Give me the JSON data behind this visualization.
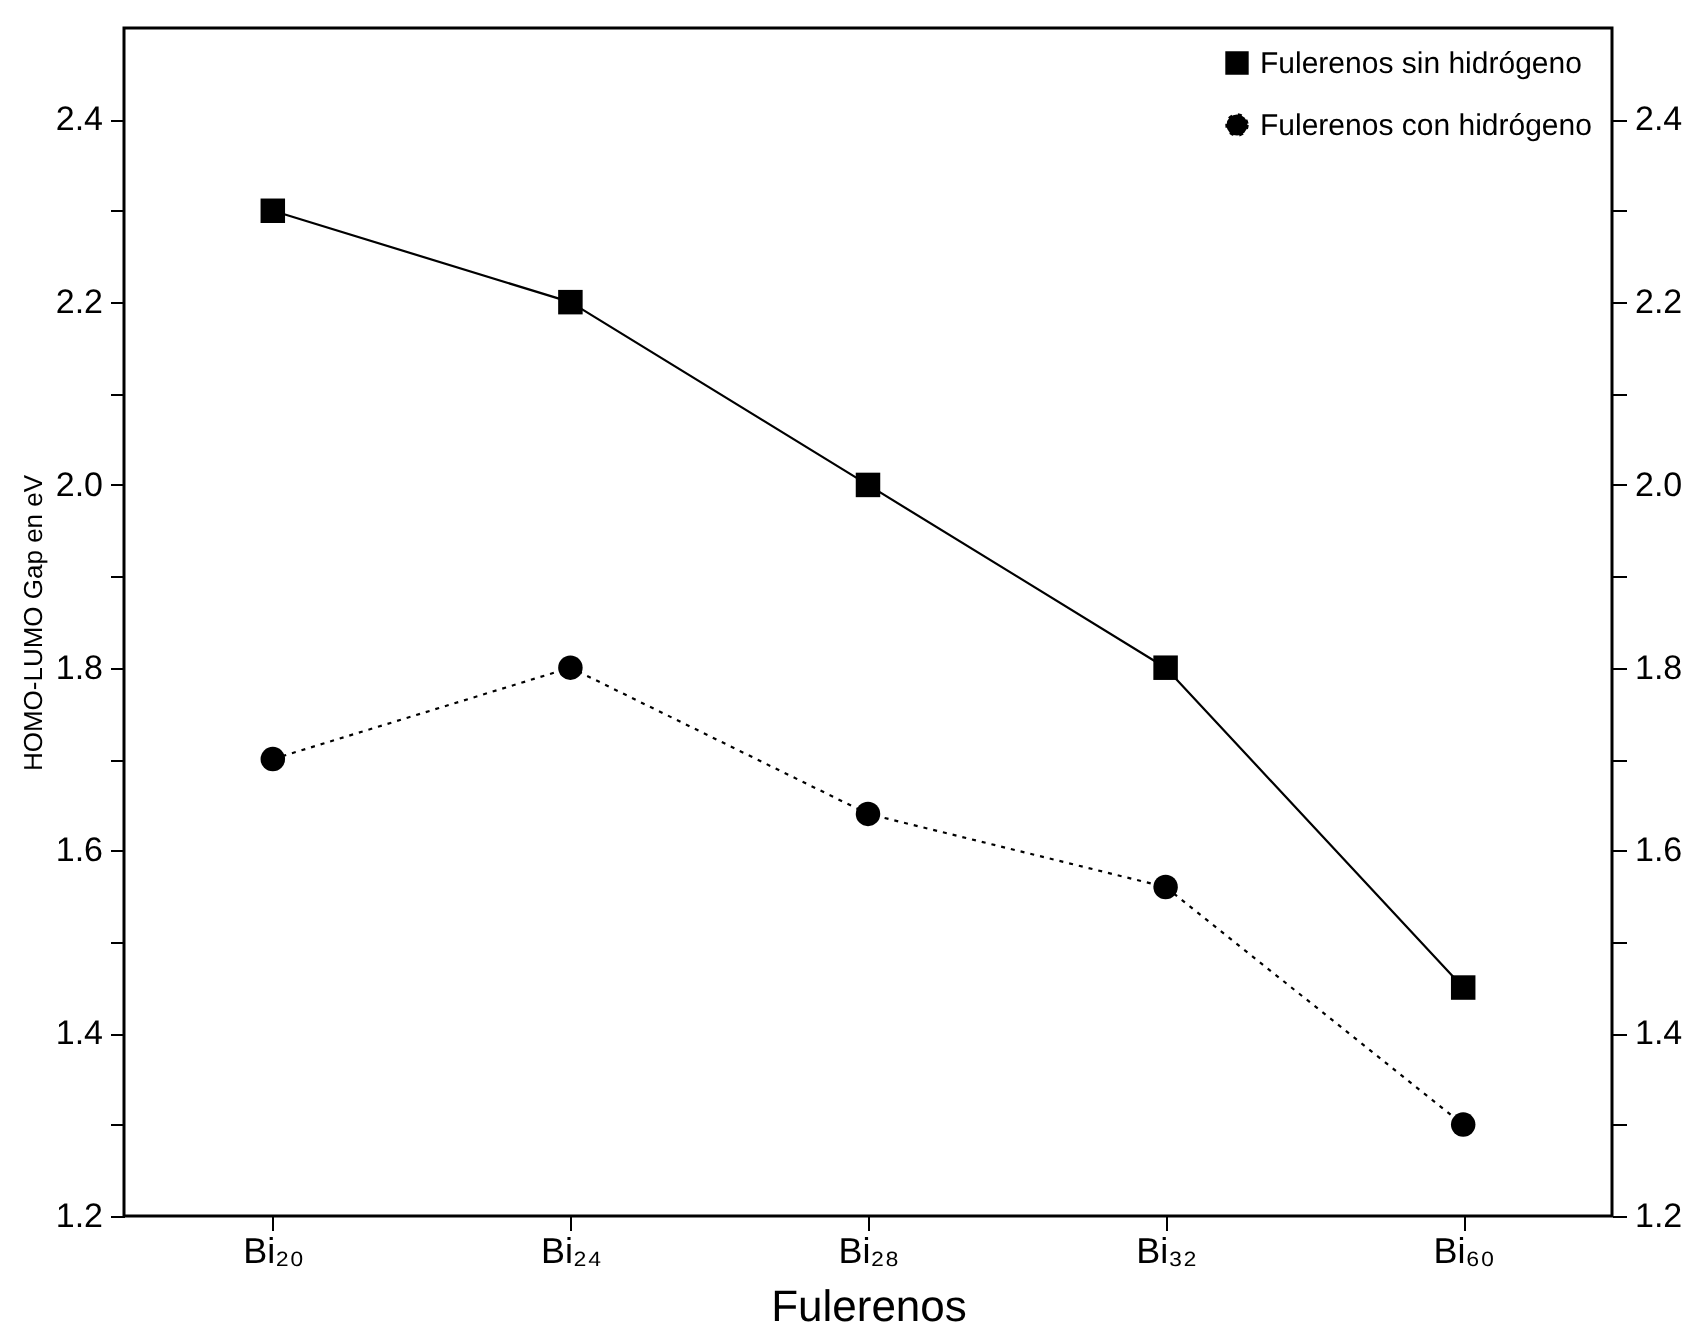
{
  "chart_data": {
    "type": "line",
    "xlabel": "Fulerenos",
    "ylabel": "HOMO-LUMO Gap en eV",
    "categories": [
      "Bi₂₀",
      "Bi₂₄",
      "Bi₂₈",
      "Bi₃₂",
      "Bi₆₀"
    ],
    "series": [
      {
        "name": "Fulerenos sin hidrógeno",
        "color": "#000000",
        "marker": "square",
        "line_style": "solid",
        "values": [
          2.3,
          2.2,
          2.0,
          1.8,
          1.45
        ]
      },
      {
        "name": "Fulerenos con hidrógeno",
        "color": "#000000",
        "marker": "circle",
        "line_style": "dotted",
        "values": [
          1.7,
          1.8,
          1.64,
          1.56,
          1.3
        ]
      }
    ],
    "ylim": [
      1.2,
      2.5
    ],
    "yticks": [
      1.2,
      {
        "value": 1.3,
        "label": null
      },
      1.4,
      {
        "value": 1.5,
        "label": null
      },
      1.6,
      {
        "value": 1.7,
        "label": null
      },
      1.8,
      {
        "value": 1.9,
        "label": null
      },
      {
        "value": 2,
        "label": "2.0"
      },
      {
        "value": 2.1,
        "label": null
      },
      2.2,
      {
        "value": 2.3,
        "label": null
      },
      2.4
    ],
    "y2lim": [
      1.2,
      2.5
    ],
    "y2ticks": [
      1.2,
      {
        "value": 1.3,
        "label": null
      },
      1.4,
      {
        "value": 1.5,
        "label": null
      },
      1.6,
      {
        "value": 1.7,
        "label": null
      },
      1.8,
      {
        "value": 1.9,
        "label": null
      },
      {
        "value": 2,
        "label": "2.0"
      },
      {
        "value": 2.1,
        "label": null
      },
      2.2,
      {
        "value": 2.3,
        "label": null
      },
      2.4
    ],
    "grid": false,
    "legend": "top right"
  }
}
